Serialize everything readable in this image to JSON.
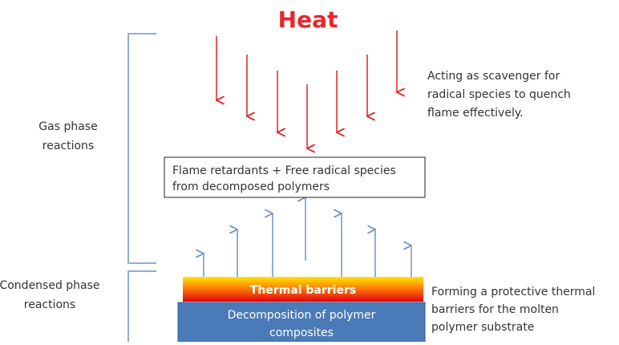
{
  "title": "Heat",
  "gas_phase": {
    "label": [
      "Gas phase",
      "reactions"
    ],
    "note": [
      "Acting as scavenger for",
      "radical species to quench",
      "flame effectively."
    ]
  },
  "box": {
    "lines": [
      "Flame retardants + Free radical species",
      "from decomposed polymers"
    ]
  },
  "condensed_phase": {
    "label": [
      "Condensed phase",
      "reactions"
    ],
    "note": [
      "Forming a protective thermal",
      "barriers for the molten",
      "polymer substrate"
    ]
  },
  "thermal_barrier": "Thermal barriers",
  "decomposition": [
    "Decomposition of polymer",
    "composites"
  ]
}
